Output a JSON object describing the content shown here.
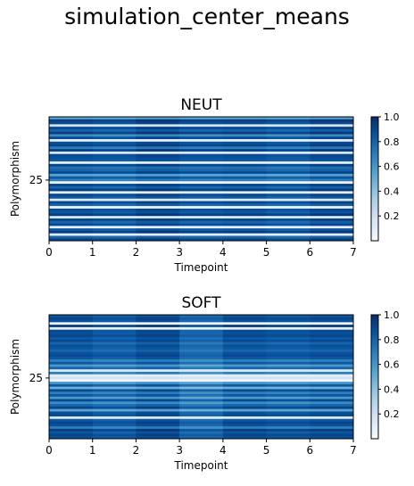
{
  "figure": {
    "title": "simulation_center_means"
  },
  "chart_data": [
    {
      "type": "heatmap",
      "title": "NEUT",
      "xlabel": "Timepoint",
      "ylabel": "Polymorphism",
      "x_ticks": [
        "0",
        "1",
        "2",
        "3",
        "4",
        "5",
        "6",
        "7"
      ],
      "xlim": [
        0,
        7
      ],
      "y_ticks": [
        {
          "label": "25",
          "row": 25
        }
      ],
      "rows": 50,
      "colormap": "Blues",
      "colorbar": {
        "range": [
          0.0,
          1.0
        ],
        "ticks": [
          "0.2",
          "0.4",
          "0.6",
          "0.8",
          "1.0"
        ]
      },
      "row_values": [
        0.55,
        0.95,
        0.9,
        0.2,
        0.92,
        0.8,
        0.95,
        0.65,
        0.9,
        0.1,
        0.88,
        0.92,
        0.7,
        0.95,
        0.15,
        0.9,
        0.88,
        0.85,
        0.1,
        0.92,
        0.75,
        0.8,
        0.9,
        0.55,
        0.85,
        0.7,
        0.05,
        0.92,
        0.8,
        0.95,
        0.1,
        0.9,
        0.85,
        0.15,
        0.92,
        0.8,
        0.05,
        0.9,
        0.85,
        0.95,
        0.15,
        0.92,
        0.8,
        0.9,
        0.1,
        0.85,
        0.95,
        0.1,
        0.8,
        0.92
      ],
      "column_factors": [
        1.0,
        0.97,
        1.03,
        0.98,
        1.0,
        0.96,
        1.02
      ]
    },
    {
      "type": "heatmap",
      "title": "SOFT",
      "xlabel": "Timepoint",
      "ylabel": "Polymorphism",
      "x_ticks": [
        "0",
        "1",
        "2",
        "3",
        "4",
        "5",
        "6",
        "7"
      ],
      "xlim": [
        0,
        7
      ],
      "y_ticks": [
        {
          "label": "25",
          "row": 25
        }
      ],
      "rows": 50,
      "colormap": "Blues",
      "colorbar": {
        "range": [
          0.0,
          1.0
        ],
        "ticks": [
          "0.2",
          "0.4",
          "0.6",
          "0.8",
          "1.0"
        ]
      },
      "row_values": [
        0.85,
        0.92,
        0.88,
        0.05,
        0.95,
        0.08,
        0.9,
        0.88,
        0.92,
        0.85,
        0.9,
        0.8,
        0.88,
        0.85,
        0.8,
        0.88,
        0.9,
        0.85,
        0.7,
        0.85,
        0.6,
        0.8,
        0.15,
        0.7,
        0.1,
        0.2,
        0.05,
        0.6,
        0.85,
        0.5,
        0.9,
        0.7,
        0.85,
        0.6,
        0.9,
        0.65,
        0.8,
        0.92,
        0.55,
        0.88,
        0.9,
        0.15,
        0.85,
        0.92,
        0.88,
        0.7,
        0.95,
        0.85,
        0.92,
        0.88
      ],
      "column_factors": [
        1.0,
        0.95,
        1.02,
        0.9,
        1.0,
        0.97,
        1.0
      ]
    }
  ]
}
